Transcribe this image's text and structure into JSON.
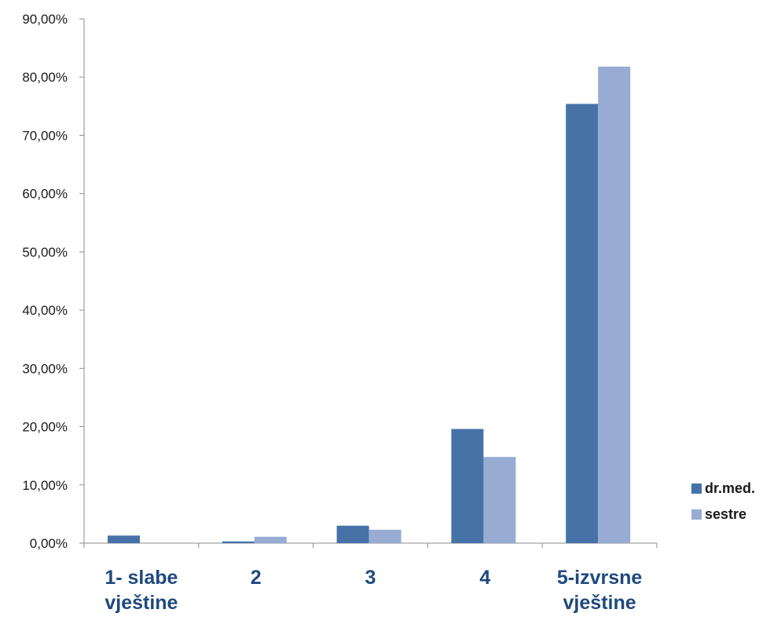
{
  "chart_data": {
    "type": "bar",
    "title": "",
    "xlabel": "",
    "ylabel": "",
    "categories": [
      "1- slabe vještine",
      "2",
      "3",
      "4",
      "5-izvrsne vještine"
    ],
    "y_tick_labels": [
      "0,00%",
      "10,00%",
      "20,00%",
      "30,00%",
      "40,00%",
      "50,00%",
      "60,00%",
      "70,00%",
      "80,00%",
      "90,00%"
    ],
    "ylim": [
      0,
      90
    ],
    "grid": false,
    "legend_position": "right",
    "series": [
      {
        "name": "dr.med.",
        "values": [
          1.3,
          0.3,
          3.0,
          19.6,
          75.4
        ],
        "color": "#4672A8"
      },
      {
        "name": "sestre",
        "values": [
          0.0,
          1.1,
          2.3,
          14.8,
          81.8
        ],
        "color": "#97ABD3"
      }
    ]
  }
}
